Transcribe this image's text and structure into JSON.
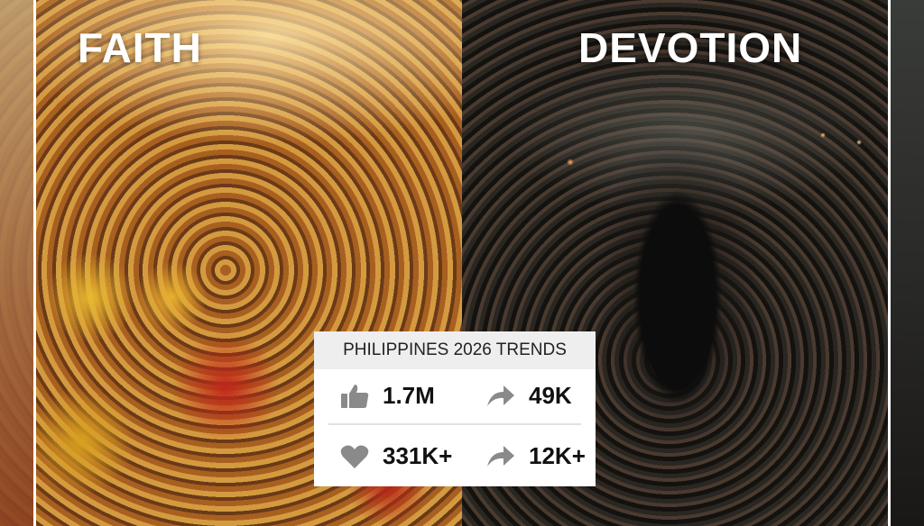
{
  "titles": {
    "left": "FAITH",
    "right": "DEVOTION"
  },
  "card": {
    "heading": "PHILIPPINES 2026 TRENDS",
    "stats": [
      {
        "icon": "thumbs-up-icon",
        "value": "1.7M"
      },
      {
        "icon": "share-arrow-icon",
        "value": "49K"
      },
      {
        "icon": "heart-icon",
        "value": "331K+"
      },
      {
        "icon": "share-arrow-icon",
        "value": "12K+"
      }
    ],
    "icon_color": "#8a8a8a"
  }
}
